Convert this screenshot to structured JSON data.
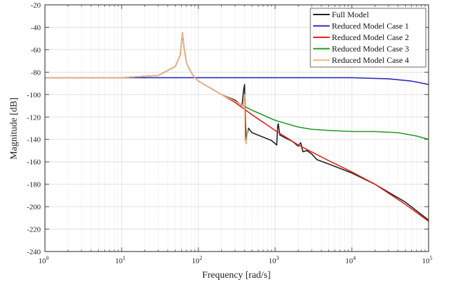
{
  "chart_data": {
    "type": "line",
    "title": "",
    "xlabel": "Frequency [rad/s]",
    "ylabel": "Magnitude [dB]",
    "xscale": "log",
    "xlim": [
      1,
      100000
    ],
    "ylim": [
      -240,
      -20
    ],
    "x_ticks": [
      {
        "value": 1,
        "base": "10",
        "exp": "0"
      },
      {
        "value": 10,
        "base": "10",
        "exp": "1"
      },
      {
        "value": 100,
        "base": "10",
        "exp": "2"
      },
      {
        "value": 1000,
        "base": "10",
        "exp": "3"
      },
      {
        "value": 10000,
        "base": "10",
        "exp": "4"
      },
      {
        "value": 100000,
        "base": "10",
        "exp": "5"
      }
    ],
    "y_ticks": [
      "-20",
      "-40",
      "-60",
      "-80",
      "-100",
      "-120",
      "-140",
      "-160",
      "-180",
      "-200",
      "-220",
      "-240"
    ],
    "grid": true,
    "legend_position": "top-right",
    "series": [
      {
        "name": "Full Model",
        "color": "#222222",
        "points": [
          [
            1,
            -85
          ],
          [
            10,
            -85
          ],
          [
            30,
            -83
          ],
          [
            50,
            -75
          ],
          [
            58,
            -65
          ],
          [
            62,
            -45
          ],
          [
            65,
            -58
          ],
          [
            70,
            -72
          ],
          [
            80,
            -80
          ],
          [
            90,
            -85
          ],
          [
            100,
            -88
          ],
          [
            200,
            -100
          ],
          [
            300,
            -105
          ],
          [
            370,
            -110
          ],
          [
            390,
            -95
          ],
          [
            400,
            -91
          ],
          [
            410,
            -125
          ],
          [
            420,
            -140
          ],
          [
            450,
            -130
          ],
          [
            500,
            -134
          ],
          [
            700,
            -138
          ],
          [
            900,
            -141
          ],
          [
            1050,
            -145
          ],
          [
            1080,
            -128
          ],
          [
            1100,
            -126
          ],
          [
            1150,
            -136
          ],
          [
            1300,
            -138
          ],
          [
            1700,
            -142
          ],
          [
            2000,
            -146
          ],
          [
            2150,
            -143
          ],
          [
            2200,
            -145
          ],
          [
            2300,
            -151
          ],
          [
            2600,
            -150
          ],
          [
            3000,
            -153
          ],
          [
            3500,
            -158
          ],
          [
            5000,
            -162
          ],
          [
            10000,
            -170
          ],
          [
            20000,
            -180
          ],
          [
            50000,
            -196
          ],
          [
            100000,
            -212
          ]
        ]
      },
      {
        "name": "Reduced Model Case 1",
        "color": "#2b2bbf",
        "points": [
          [
            1,
            -85
          ],
          [
            100,
            -85
          ],
          [
            1000,
            -85
          ],
          [
            10000,
            -85
          ],
          [
            30000,
            -86
          ],
          [
            60000,
            -88
          ],
          [
            100000,
            -91
          ]
        ]
      },
      {
        "name": "Reduced Model Case 2",
        "color": "#e02020",
        "points": [
          [
            1,
            -85
          ],
          [
            10,
            -85
          ],
          [
            30,
            -83
          ],
          [
            50,
            -75
          ],
          [
            58,
            -65
          ],
          [
            62,
            -45
          ],
          [
            65,
            -58
          ],
          [
            70,
            -72
          ],
          [
            80,
            -80
          ],
          [
            90,
            -85
          ],
          [
            100,
            -88
          ],
          [
            200,
            -100
          ],
          [
            300,
            -107
          ],
          [
            500,
            -118
          ],
          [
            1000,
            -132
          ],
          [
            2000,
            -145
          ],
          [
            5000,
            -159
          ],
          [
            10000,
            -169
          ],
          [
            20000,
            -180
          ],
          [
            50000,
            -198
          ],
          [
            100000,
            -213
          ]
        ]
      },
      {
        "name": "Reduced Model Case 3",
        "color": "#229922",
        "points": [
          [
            1,
            -85
          ],
          [
            10,
            -85
          ],
          [
            30,
            -83
          ],
          [
            50,
            -75
          ],
          [
            58,
            -65
          ],
          [
            62,
            -45
          ],
          [
            65,
            -58
          ],
          [
            70,
            -72
          ],
          [
            80,
            -80
          ],
          [
            90,
            -85
          ],
          [
            100,
            -88
          ],
          [
            200,
            -100
          ],
          [
            300,
            -106
          ],
          [
            500,
            -114
          ],
          [
            1000,
            -123
          ],
          [
            2000,
            -129
          ],
          [
            3000,
            -131
          ],
          [
            5000,
            -132
          ],
          [
            10000,
            -133
          ],
          [
            20000,
            -133
          ],
          [
            40000,
            -134
          ],
          [
            70000,
            -137
          ],
          [
            100000,
            -140
          ]
        ]
      },
      {
        "name": "Reduced Model Case 4",
        "color": "#f5b48a",
        "points": [
          [
            1,
            -85
          ],
          [
            10,
            -85
          ],
          [
            30,
            -83
          ],
          [
            50,
            -75
          ],
          [
            58,
            -65
          ],
          [
            62,
            -45
          ],
          [
            65,
            -58
          ],
          [
            70,
            -72
          ],
          [
            80,
            -80
          ],
          [
            90,
            -85
          ],
          [
            100,
            -88
          ],
          [
            200,
            -100
          ],
          [
            300,
            -106
          ],
          [
            380,
            -110
          ],
          [
            400,
            -100
          ],
          [
            405,
            -140
          ],
          [
            420,
            -144
          ],
          [
            440,
            -130
          ]
        ]
      }
    ]
  }
}
